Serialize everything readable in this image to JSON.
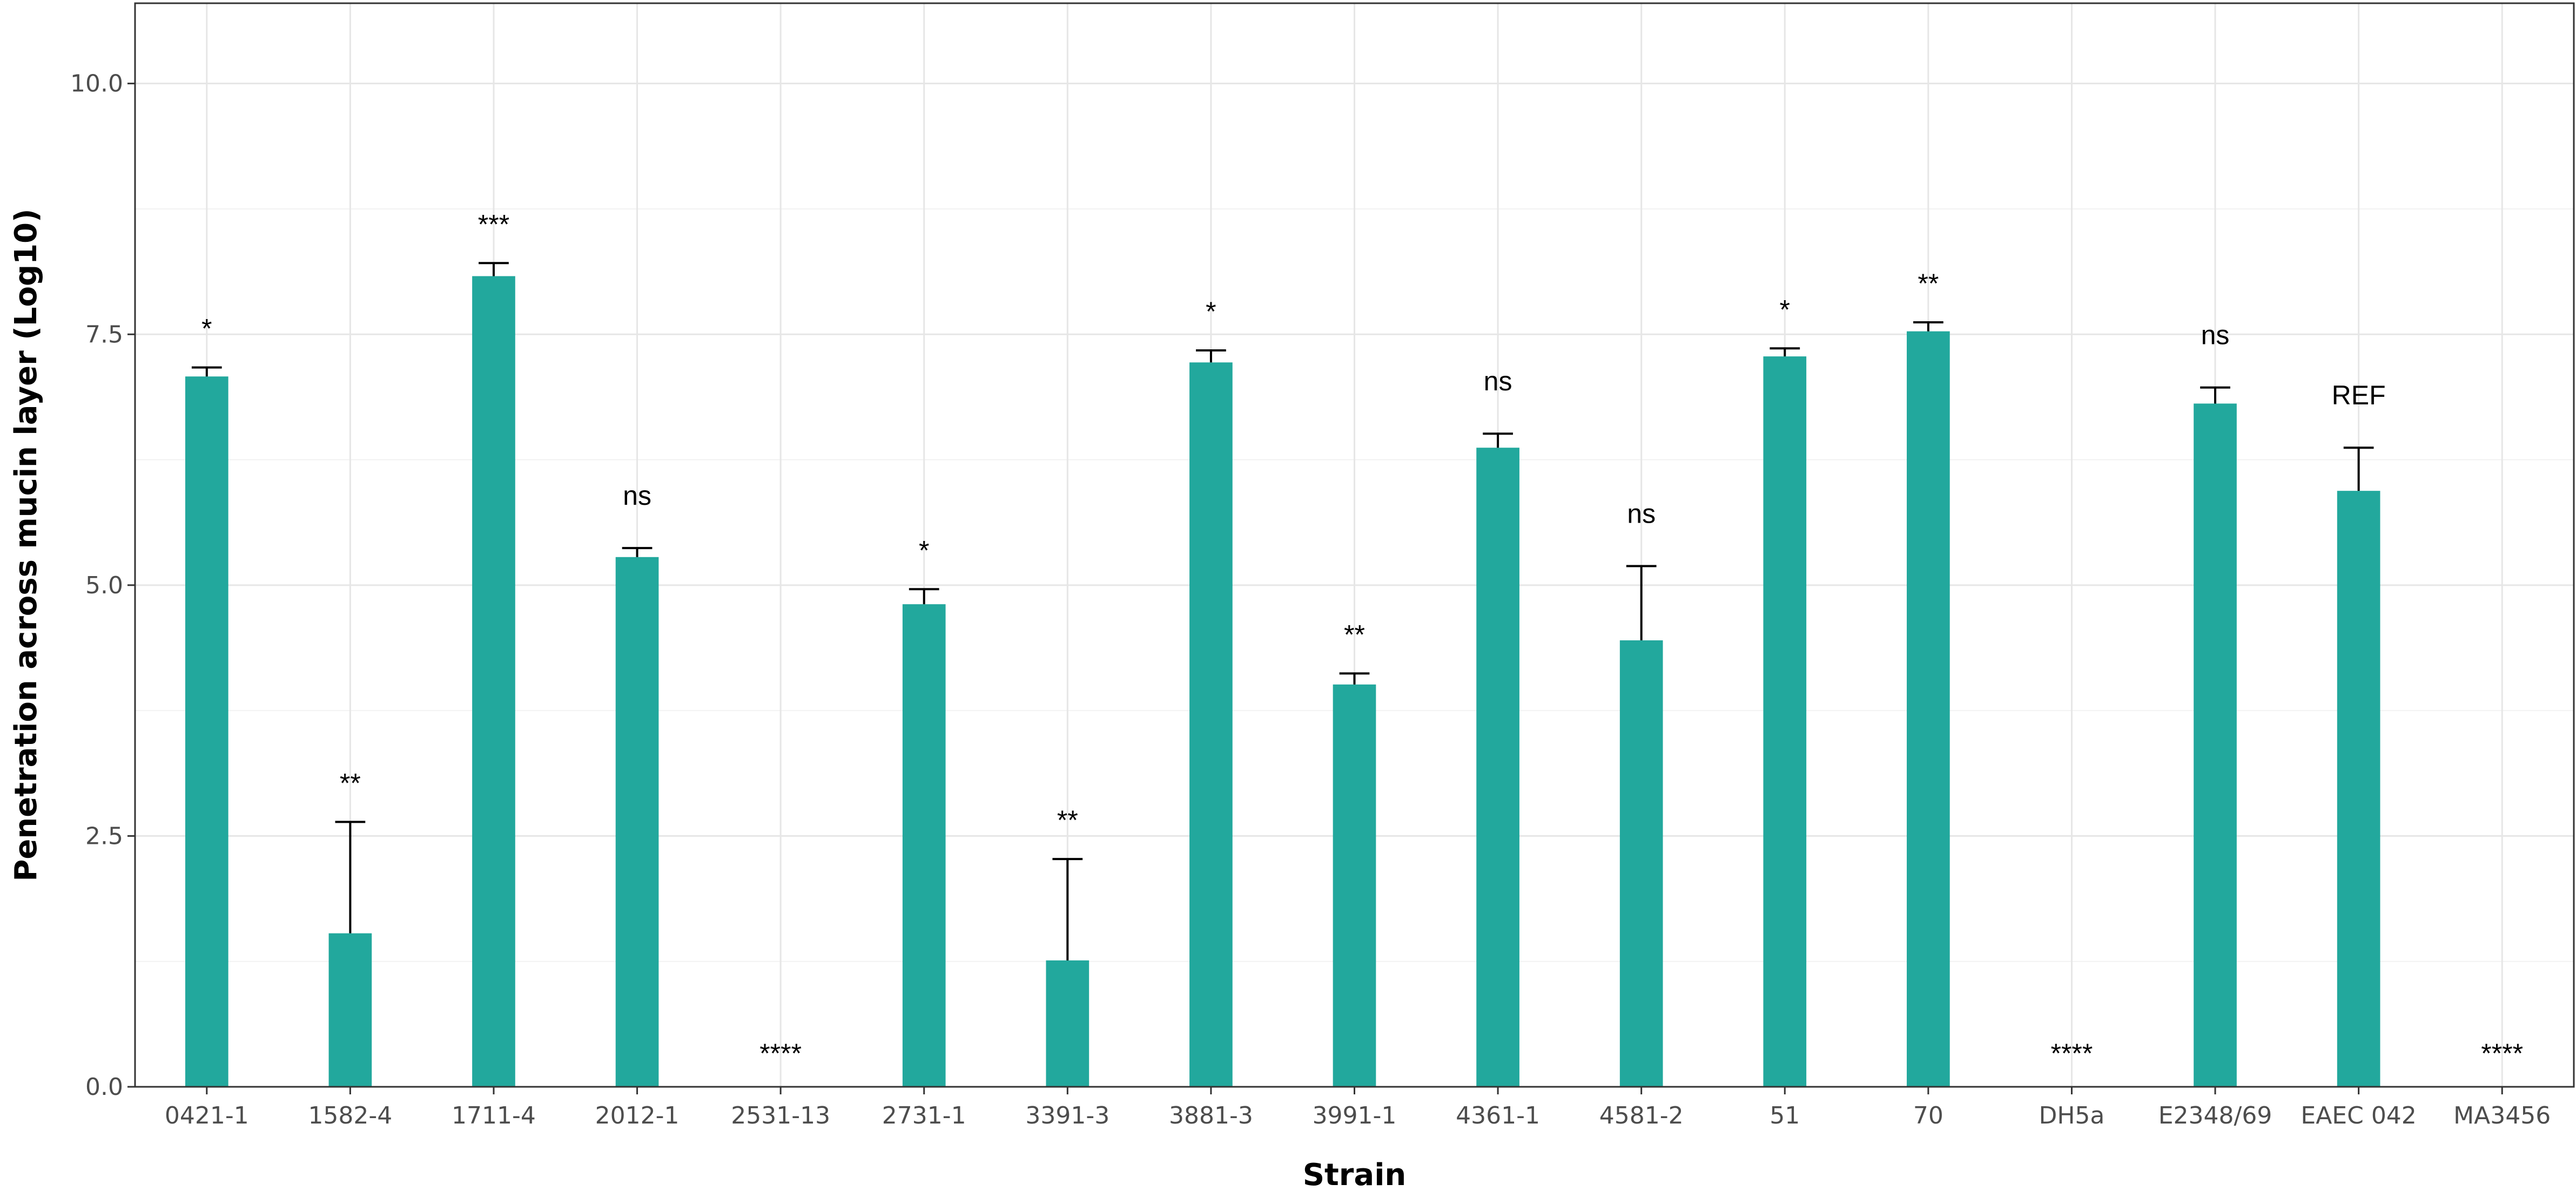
{
  "chart_data": {
    "type": "bar",
    "title": "",
    "xlabel": "Strain",
    "ylabel": "Penetration across mucin layer (Log10)",
    "ylim": [
      0,
      10.8
    ],
    "yticks": [
      "0.0",
      "2.5",
      "5.0",
      "7.5",
      "10.0"
    ],
    "ytick_values": [
      0,
      2.5,
      5,
      7.5,
      10
    ],
    "grid": true,
    "legend": "none",
    "bar_color": "#22a89d",
    "categories": [
      "0421-1",
      "1582-4",
      "1711-4",
      "2012-1",
      "2531-13",
      "2731-1",
      "3391-3",
      "3881-3",
      "3991-1",
      "4361-1",
      "4581-2",
      "51",
      "70",
      "DH5a",
      "E2348/69",
      "EAEC 042",
      "MA3456"
    ],
    "values": [
      7.08,
      1.53,
      8.08,
      5.28,
      0,
      4.81,
      1.26,
      7.22,
      4.01,
      6.37,
      4.45,
      7.28,
      7.53,
      0,
      6.81,
      5.94,
      0
    ],
    "error_upper": [
      7.17,
      2.64,
      8.21,
      5.37,
      null,
      4.96,
      2.27,
      7.34,
      4.12,
      6.51,
      5.19,
      7.36,
      7.62,
      null,
      6.97,
      6.37,
      null
    ],
    "significance": [
      "*",
      "**",
      "***",
      "ns",
      "****",
      "*",
      "**",
      "*",
      "**",
      "ns",
      "ns",
      "*",
      "**",
      "****",
      "ns",
      "REF",
      "****"
    ]
  }
}
